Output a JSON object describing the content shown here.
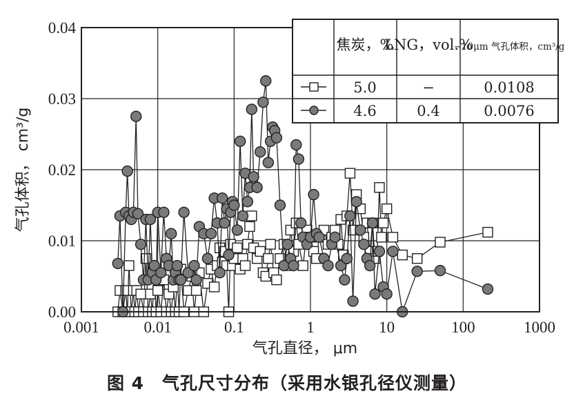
{
  "caption": "图 4　气孔尺寸分布（采用水银孔径仪测量）",
  "chart_data": {
    "type": "scatter",
    "connected": true,
    "xscale": "log",
    "xlabel": "气孔直径， μm",
    "ylabel": "气孔体积， cm³/g",
    "xlim": [
      0.001,
      1000
    ],
    "ylim": [
      0,
      0.04
    ],
    "x_ticks": [
      "0.001",
      "0.01",
      "0.1",
      "1",
      "10",
      "100",
      "1000"
    ],
    "y_ticks": [
      "0.00",
      "0.01",
      "0.02",
      "0.03",
      "0.04"
    ],
    "grid": true,
    "colors": {
      "square_fill": "#ffffff",
      "circle_fill": "#7a7a7a",
      "line": "#231f20"
    },
    "legend": {
      "placement": "top-right",
      "headers": [
        "焦炭，%",
        "LNG，vol.%",
        "−10μm 气孔体积，cm³/g"
      ],
      "rows": [
        {
          "marker": "square",
          "coke": "5.0",
          "lng": "−",
          "volume": "0.0108"
        },
        {
          "marker": "circle",
          "coke": "4.6",
          "lng": "0.4",
          "volume": "0.0076"
        }
      ]
    },
    "series": [
      {
        "marker": "square",
        "points": [
          [
            0.003,
            0.0
          ],
          [
            0.0032,
            0.003
          ],
          [
            0.0035,
            0.0
          ],
          [
            0.0038,
            0.003
          ],
          [
            0.004,
            0.0
          ],
          [
            0.0042,
            0.0065
          ],
          [
            0.0045,
            0.0
          ],
          [
            0.0048,
            0.003
          ],
          [
            0.005,
            0.0
          ],
          [
            0.0053,
            0.003
          ],
          [
            0.0056,
            0.0
          ],
          [
            0.006,
            0.0025
          ],
          [
            0.0065,
            0.0
          ],
          [
            0.007,
            0.0075
          ],
          [
            0.0075,
            0.0
          ],
          [
            0.008,
            0.0025
          ],
          [
            0.0085,
            0.0
          ],
          [
            0.009,
            0.0055
          ],
          [
            0.0095,
            0.0
          ],
          [
            0.01,
            0.003
          ],
          [
            0.011,
            0.0
          ],
          [
            0.012,
            0.0045
          ],
          [
            0.013,
            0.0
          ],
          [
            0.014,
            0.0025
          ],
          [
            0.015,
            0.0
          ],
          [
            0.016,
            0.0035
          ],
          [
            0.017,
            0.0
          ],
          [
            0.018,
            0.005
          ],
          [
            0.019,
            0.0
          ],
          [
            0.02,
            0.006
          ],
          [
            0.022,
            0.0
          ],
          [
            0.025,
            0.003
          ],
          [
            0.028,
            0.005
          ],
          [
            0.03,
            0.0
          ],
          [
            0.032,
            0.003
          ],
          [
            0.035,
            0.0055
          ],
          [
            0.04,
            0.0
          ],
          [
            0.045,
            0.004
          ],
          [
            0.05,
            0.006
          ],
          [
            0.055,
            0.0035
          ],
          [
            0.06,
            0.0065
          ],
          [
            0.065,
            0.009
          ],
          [
            0.07,
            0.007
          ],
          [
            0.075,
            0.0085
          ],
          [
            0.08,
            0.0065
          ],
          [
            0.085,
            0.0
          ],
          [
            0.09,
            0.0095
          ],
          [
            0.095,
            0.0065
          ],
          [
            0.1,
            0.0075
          ],
          [
            0.11,
            0.009
          ],
          [
            0.12,
            0.006
          ],
          [
            0.13,
            0.0075
          ],
          [
            0.14,
            0.0065
          ],
          [
            0.15,
            0.0095
          ],
          [
            0.16,
            0.012
          ],
          [
            0.17,
            0.0135
          ],
          [
            0.18,
            0.009
          ],
          [
            0.2,
            0.0075
          ],
          [
            0.22,
            0.0085
          ],
          [
            0.24,
            0.0055
          ],
          [
            0.26,
            0.005
          ],
          [
            0.28,
            0.0075
          ],
          [
            0.3,
            0.0095
          ],
          [
            0.33,
            0.0055
          ],
          [
            0.36,
            0.0045
          ],
          [
            0.4,
            0.0075
          ],
          [
            0.45,
            0.0095
          ],
          [
            0.5,
            0.0065
          ],
          [
            0.55,
            0.0115
          ],
          [
            0.6,
            0.0085
          ],
          [
            0.65,
            0.0125
          ],
          [
            0.7,
            0.0095
          ],
          [
            0.8,
            0.0065
          ],
          [
            0.9,
            0.0115
          ],
          [
            1.0,
            0.0105
          ],
          [
            1.1,
            0.0085
          ],
          [
            1.2,
            0.0075
          ],
          [
            1.3,
            0.0105
          ],
          [
            1.5,
            0.0115
          ],
          [
            1.7,
            0.0095
          ],
          [
            1.9,
            0.0105
          ],
          [
            2.1,
            0.0115
          ],
          [
            2.3,
            0.0095
          ],
          [
            2.5,
            0.013
          ],
          [
            2.7,
            0.008
          ],
          [
            3.0,
            0.0135
          ],
          [
            3.3,
            0.0195
          ],
          [
            3.6,
            0.0115
          ],
          [
            4.0,
            0.0165
          ],
          [
            4.5,
            0.0145
          ],
          [
            5.0,
            0.0105
          ],
          [
            5.5,
            0.0125
          ],
          [
            6.0,
            0.0085
          ],
          [
            6.5,
            0.0125
          ],
          [
            7.0,
            0.0075
          ],
          [
            7.5,
            0.0085
          ],
          [
            8.0,
            0.0175
          ],
          [
            8.5,
            0.0105
          ],
          [
            9.0,
            0.0125
          ],
          [
            10.0,
            0.0145
          ],
          [
            12.0,
            0.0105
          ],
          [
            16.0,
            0.008
          ],
          [
            25.0,
            0.0075
          ],
          [
            50.0,
            0.0098
          ],
          [
            210.0,
            0.0112
          ]
        ]
      },
      {
        "marker": "circle",
        "points": [
          [
            0.003,
            0.0068
          ],
          [
            0.0032,
            0.0135
          ],
          [
            0.0035,
            0.0
          ],
          [
            0.0038,
            0.014
          ],
          [
            0.004,
            0.0198
          ],
          [
            0.0042,
            0.0135
          ],
          [
            0.0045,
            0.013
          ],
          [
            0.0048,
            0.014
          ],
          [
            0.0052,
            0.0275
          ],
          [
            0.0055,
            0.0138
          ],
          [
            0.006,
            0.0095
          ],
          [
            0.0065,
            0.0045
          ],
          [
            0.007,
            0.013
          ],
          [
            0.0075,
            0.0045
          ],
          [
            0.008,
            0.013
          ],
          [
            0.0085,
            0.0055
          ],
          [
            0.009,
            0.0065
          ],
          [
            0.0095,
            0.0045
          ],
          [
            0.01,
            0.014
          ],
          [
            0.011,
            0.0055
          ],
          [
            0.012,
            0.014
          ],
          [
            0.013,
            0.0075
          ],
          [
            0.014,
            0.0065
          ],
          [
            0.015,
            0.011
          ],
          [
            0.016,
            0.0045
          ],
          [
            0.017,
            0.0055
          ],
          [
            0.018,
            0.0065
          ],
          [
            0.019,
            0.0045
          ],
          [
            0.02,
            0.0045
          ],
          [
            0.022,
            0.014
          ],
          [
            0.025,
            0.0055
          ],
          [
            0.03,
            0.0065
          ],
          [
            0.032,
            0.0045
          ],
          [
            0.035,
            0.012
          ],
          [
            0.04,
            0.011
          ],
          [
            0.045,
            0.0075
          ],
          [
            0.05,
            0.011
          ],
          [
            0.055,
            0.016
          ],
          [
            0.06,
            0.0125
          ],
          [
            0.065,
            0.0055
          ],
          [
            0.07,
            0.016
          ],
          [
            0.075,
            0.0125
          ],
          [
            0.08,
            0.0145
          ],
          [
            0.085,
            0.008
          ],
          [
            0.09,
            0.014
          ],
          [
            0.095,
            0.0155
          ],
          [
            0.1,
            0.015
          ],
          [
            0.11,
            0.0115
          ],
          [
            0.12,
            0.024
          ],
          [
            0.13,
            0.0135
          ],
          [
            0.14,
            0.0195
          ],
          [
            0.15,
            0.0155
          ],
          [
            0.16,
            0.0175
          ],
          [
            0.17,
            0.0285
          ],
          [
            0.18,
            0.019
          ],
          [
            0.2,
            0.0175
          ],
          [
            0.22,
            0.0225
          ],
          [
            0.24,
            0.0295
          ],
          [
            0.26,
            0.0325
          ],
          [
            0.28,
            0.021
          ],
          [
            0.3,
            0.024
          ],
          [
            0.32,
            0.026
          ],
          [
            0.34,
            0.0255
          ],
          [
            0.36,
            0.0245
          ],
          [
            0.4,
            0.015
          ],
          [
            0.45,
            0.0065
          ],
          [
            0.5,
            0.0095
          ],
          [
            0.55,
            0.0075
          ],
          [
            0.6,
            0.0065
          ],
          [
            0.65,
            0.0235
          ],
          [
            0.7,
            0.0215
          ],
          [
            0.75,
            0.0125
          ],
          [
            0.8,
            0.0105
          ],
          [
            0.9,
            0.0095
          ],
          [
            1.0,
            0.0105
          ],
          [
            1.1,
            0.0165
          ],
          [
            1.2,
            0.011
          ],
          [
            1.3,
            0.0105
          ],
          [
            1.5,
            0.0075
          ],
          [
            1.7,
            0.0065
          ],
          [
            1.9,
            0.0095
          ],
          [
            2.1,
            0.0105
          ],
          [
            2.5,
            0.0065
          ],
          [
            2.8,
            0.0045
          ],
          [
            3.0,
            0.0075
          ],
          [
            3.3,
            0.0135
          ],
          [
            3.6,
            0.0015
          ],
          [
            4.0,
            0.0155
          ],
          [
            4.5,
            0.0115
          ],
          [
            5.0,
            0.0095
          ],
          [
            5.5,
            0.0075
          ],
          [
            6.0,
            0.0065
          ],
          [
            6.5,
            0.0125
          ],
          [
            7.0,
            0.0025
          ],
          [
            8.0,
            0.0085
          ],
          [
            9.0,
            0.0035
          ],
          [
            10.0,
            0.0025
          ],
          [
            12.0,
            0.0085
          ],
          [
            16.0,
            0.0
          ],
          [
            25.0,
            0.0057
          ],
          [
            50.0,
            0.0058
          ],
          [
            210.0,
            0.0032
          ]
        ]
      }
    ]
  }
}
